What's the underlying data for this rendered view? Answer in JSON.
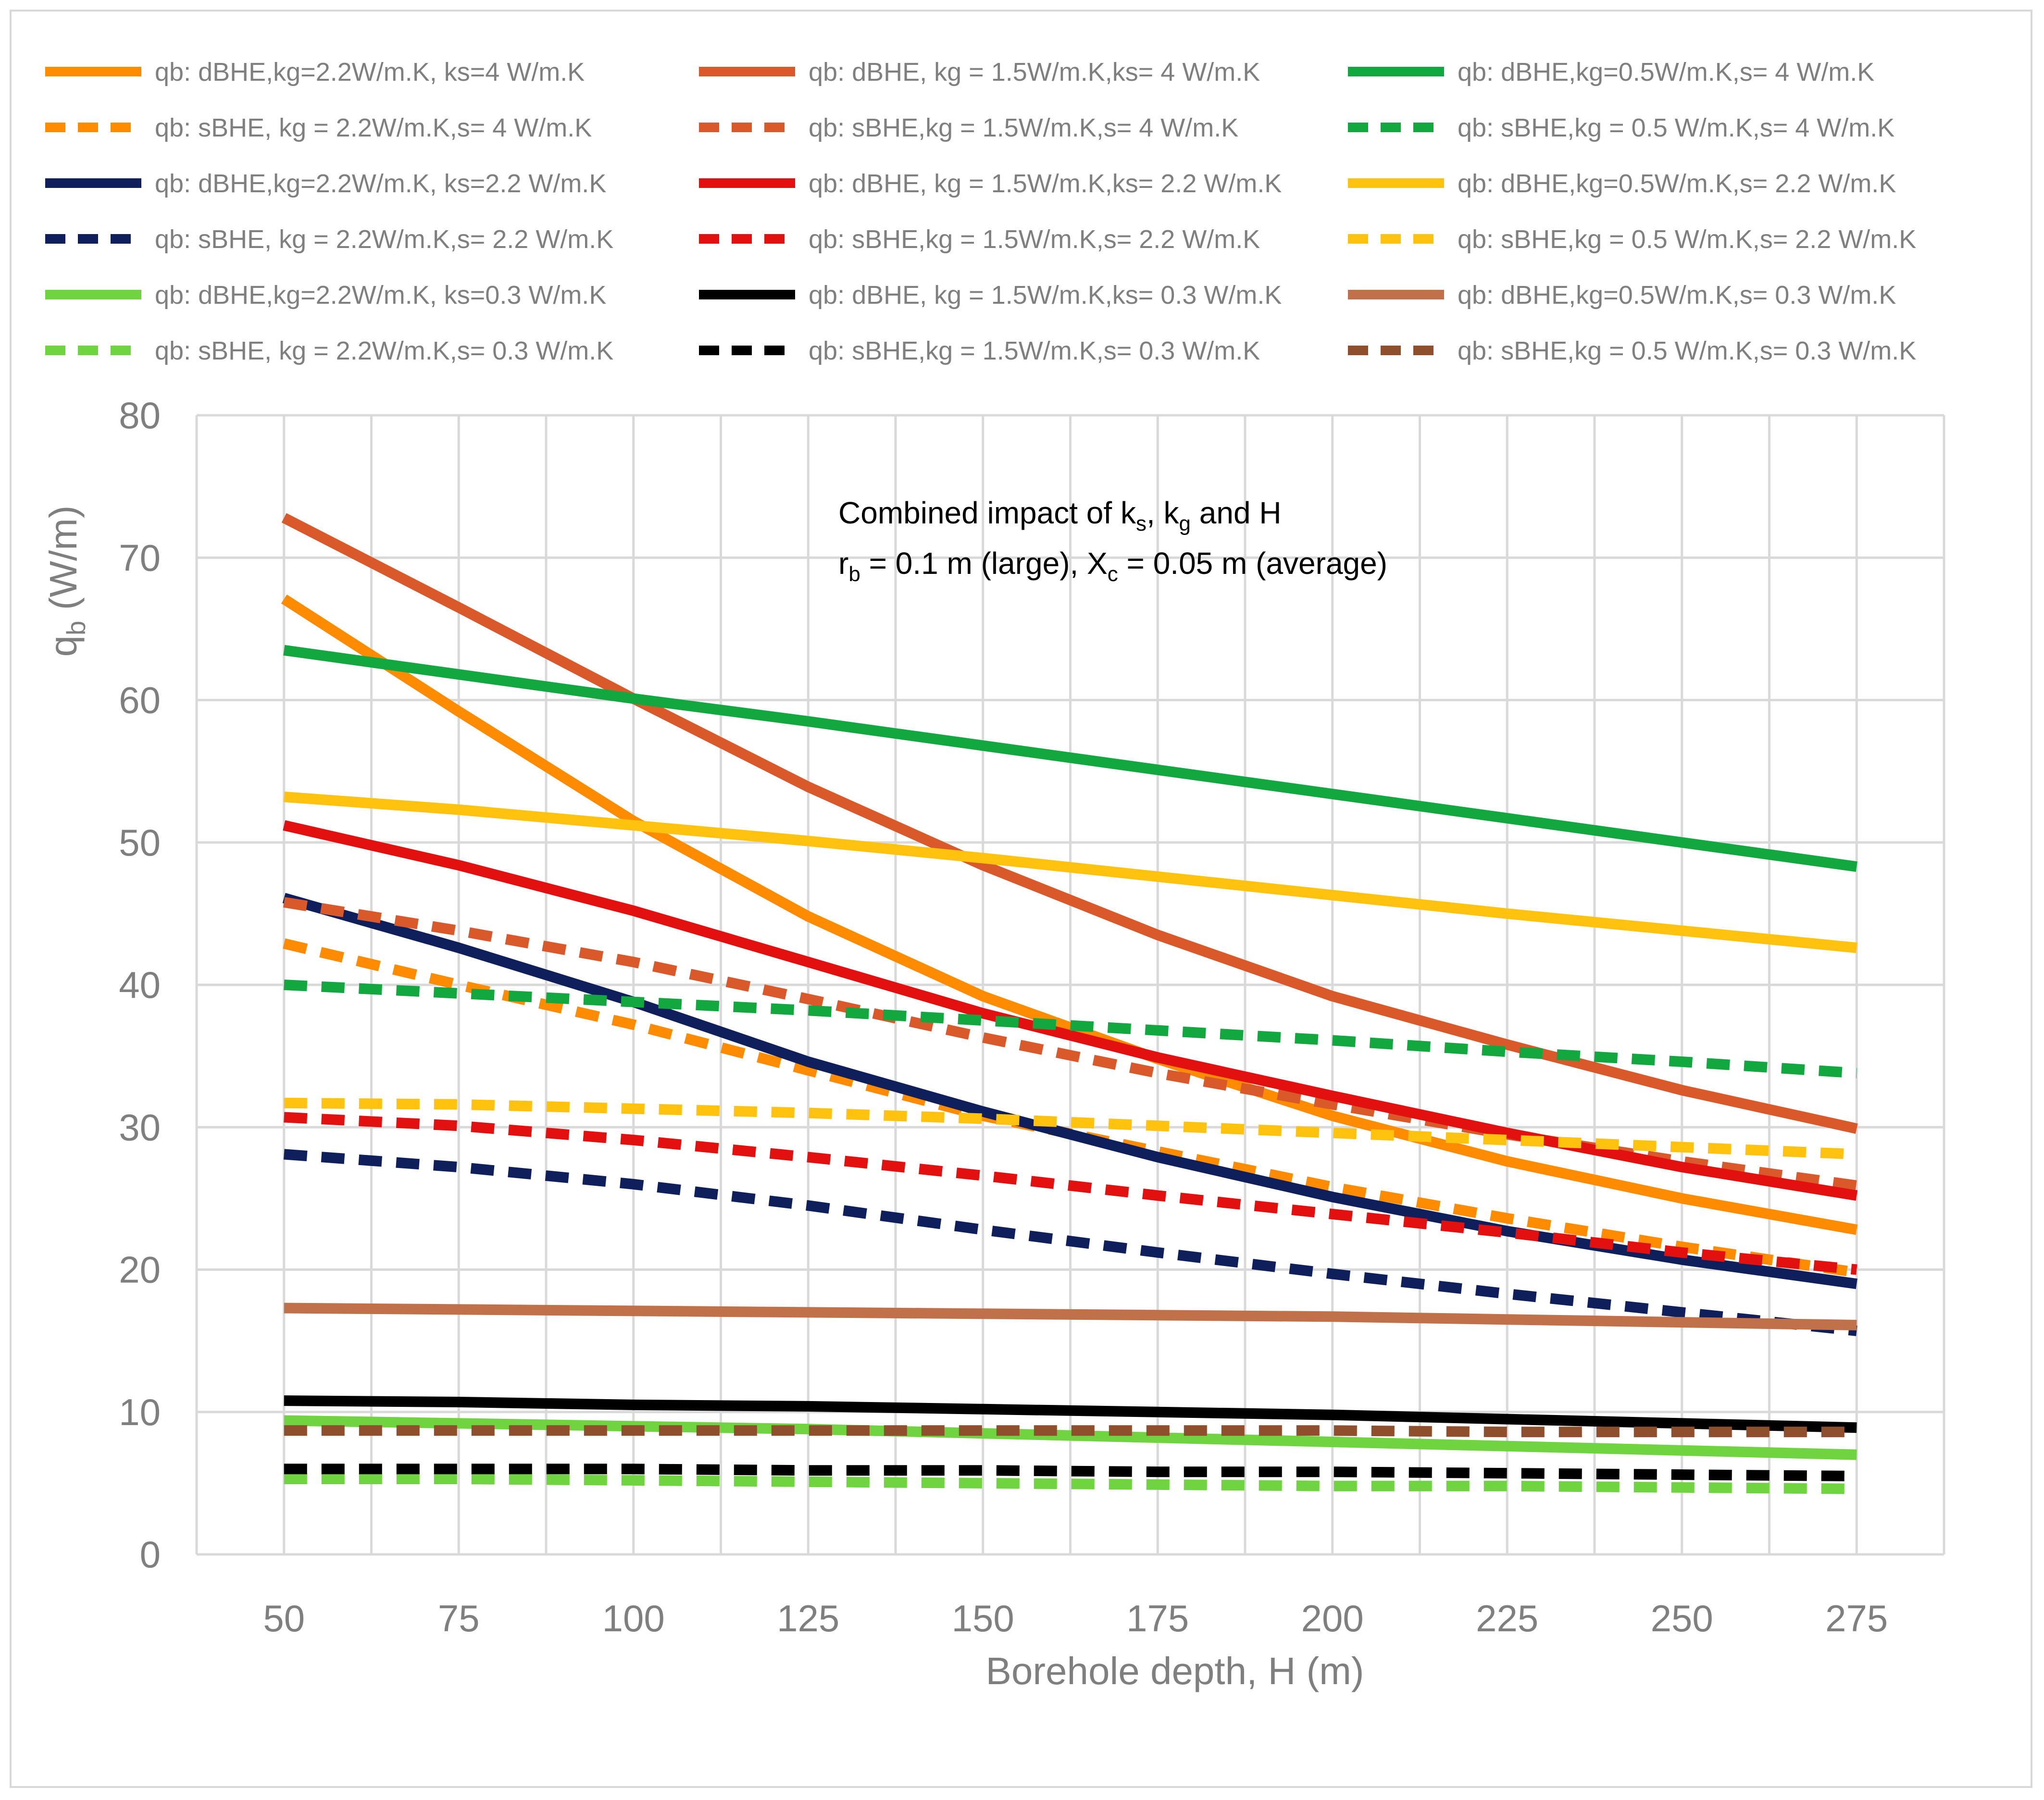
{
  "chart_data": {
    "type": "line",
    "xlabel": "Borehole depth, H (m)",
    "ylabel_main": "q",
    "ylabel_sub": "b",
    "ylabel_unit": " (W/m)",
    "x": [
      50,
      75,
      100,
      125,
      150,
      175,
      200,
      225,
      250,
      275
    ],
    "x_tick_labels": [
      "50",
      "75",
      "100",
      "125",
      "150",
      "175",
      "200",
      "225",
      "250",
      "275"
    ],
    "xlim": [
      37.5,
      287.5
    ],
    "ylim": [
      0,
      80
    ],
    "y_tick_labels": [
      "0",
      "10",
      "20",
      "30",
      "40",
      "50",
      "60",
      "70",
      "80"
    ],
    "grid": true,
    "legend_position": "top",
    "annotation": {
      "line1_a": "Combined impact of k",
      "line1_sub_s": "s",
      "line1_b": ", k",
      "line1_sub_g": "g",
      "line1_c": " and H",
      "line2_a": "r",
      "line2_sub_b": "b",
      "line2_b": " = 0.1 m (large), X",
      "line2_sub_c": "c",
      "line2_c": " = 0.05 m (average)"
    },
    "series": [
      {
        "name": "qb: dBHE,kg=2.2W/m.K, ks=4 W/m.K",
        "color": "#ff8c00",
        "dash": "solid",
        "values": [
          67.1,
          59.2,
          51.5,
          44.8,
          39.2,
          34.8,
          30.8,
          27.6,
          25.0,
          22.8
        ]
      },
      {
        "name": "qb: sBHE, kg = 2.2W/m.K,s= 4 W/m.K",
        "color": "#ff8c00",
        "dash": "dashed",
        "values": [
          42.9,
          40.0,
          37.2,
          34.0,
          30.8,
          28.3,
          25.8,
          23.6,
          21.6,
          19.8
        ]
      },
      {
        "name": "qb: dBHE,kg=2.2W/m.K, ks=2.2 W/m.K",
        "color": "#0f1f5c",
        "dash": "solid",
        "values": [
          46.1,
          42.6,
          38.8,
          34.6,
          31.1,
          27.9,
          25.1,
          22.7,
          20.7,
          19.0
        ]
      },
      {
        "name": "qb: sBHE, kg = 2.2W/m.K,s= 2.2 W/m.K",
        "color": "#0f1f5c",
        "dash": "dashed",
        "values": [
          28.1,
          27.2,
          26.0,
          24.5,
          22.8,
          21.2,
          19.7,
          18.3,
          17.0,
          15.7
        ]
      },
      {
        "name": "qb: dBHE,kg=2.2W/m.K, ks=0.3 W/m.K",
        "color": "#6fd43f",
        "dash": "solid",
        "values": [
          9.4,
          9.2,
          9.0,
          8.8,
          8.5,
          8.2,
          7.9,
          7.6,
          7.3,
          7.0
        ]
      },
      {
        "name": "qb: sBHE, kg = 2.2W/m.K,s= 0.3 W/m.K",
        "color": "#6fd43f",
        "dash": "dashed",
        "values": [
          5.3,
          5.3,
          5.2,
          5.1,
          5.0,
          4.9,
          4.8,
          4.8,
          4.7,
          4.6
        ]
      },
      {
        "name": "qb: dBHE, kg = 1.5W/m.K,ks= 4 W/m.K",
        "color": "#d9592b",
        "dash": "solid",
        "values": [
          72.8,
          66.5,
          60.1,
          53.9,
          48.4,
          43.5,
          39.2,
          35.8,
          32.6,
          29.9
        ]
      },
      {
        "name": "qb: sBHE,kg = 1.5W/m.K,s= 4 W/m.K",
        "color": "#d9592b",
        "dash": "dashed",
        "values": [
          45.8,
          43.8,
          41.6,
          39.0,
          36.3,
          33.8,
          31.6,
          29.5,
          27.6,
          25.9
        ]
      },
      {
        "name": "qb: dBHE, kg = 1.5W/m.K,ks= 2.2 W/m.K",
        "color": "#e31010",
        "dash": "solid",
        "values": [
          51.2,
          48.4,
          45.2,
          41.6,
          38.0,
          34.9,
          32.2,
          29.6,
          27.2,
          25.2
        ]
      },
      {
        "name": "qb: sBHE,kg = 1.5W/m.K,s= 2.2 W/m.K",
        "color": "#e31010",
        "dash": "dashed",
        "values": [
          30.7,
          30.1,
          29.1,
          27.9,
          26.6,
          25.2,
          23.9,
          22.6,
          21.2,
          20.0
        ]
      },
      {
        "name": "qb: dBHE, kg = 1.5W/m.K,ks= 0.3 W/m.K",
        "color": "#000000",
        "dash": "solid",
        "values": [
          10.8,
          10.7,
          10.5,
          10.4,
          10.2,
          10.0,
          9.8,
          9.5,
          9.2,
          8.9
        ]
      },
      {
        "name": "qb: sBHE,kg = 1.5W/m.K,s= 0.3 W/m.K",
        "color": "#000000",
        "dash": "dashed",
        "values": [
          6.0,
          6.0,
          6.0,
          5.9,
          5.9,
          5.8,
          5.8,
          5.7,
          5.6,
          5.5
        ]
      },
      {
        "name": "qb: dBHE,kg=0.5W/m.K,s= 4 W/m.K",
        "color": "#12a83f",
        "dash": "solid",
        "values": [
          63.5,
          61.8,
          60.1,
          58.5,
          56.8,
          55.1,
          53.4,
          51.7,
          50.0,
          48.3
        ]
      },
      {
        "name": "qb: sBHE,kg = 0.5 W/m.K,s= 4 W/m.K",
        "color": "#12a83f",
        "dash": "dashed",
        "values": [
          40.0,
          39.4,
          38.8,
          38.2,
          37.5,
          36.8,
          36.1,
          35.3,
          34.6,
          33.8
        ]
      },
      {
        "name": "qb: dBHE,kg=0.5W/m.K,s= 2.2 W/m.K",
        "color": "#ffc20e",
        "dash": "solid",
        "values": [
          53.2,
          52.3,
          51.2,
          50.1,
          48.9,
          47.6,
          46.3,
          45.0,
          43.8,
          42.6
        ]
      },
      {
        "name": "qb: sBHE,kg = 0.5 W/m.K,s= 2.2 W/m.K",
        "color": "#ffc20e",
        "dash": "dashed",
        "values": [
          31.7,
          31.6,
          31.3,
          31.0,
          30.6,
          30.1,
          29.6,
          29.1,
          28.6,
          28.1
        ]
      },
      {
        "name": "qb: dBHE,kg=0.5W/m.K,s= 0.3 W/m.K",
        "color": "#c0714a",
        "dash": "solid",
        "values": [
          17.3,
          17.2,
          17.1,
          17.0,
          16.9,
          16.8,
          16.7,
          16.5,
          16.3,
          16.1
        ]
      },
      {
        "name": "qb: sBHE,kg = 0.5 W/m.K,s= 0.3 W/m.K",
        "color": "#8f4f2c",
        "dash": "dashed",
        "values": [
          8.7,
          8.7,
          8.7,
          8.7,
          8.7,
          8.7,
          8.7,
          8.6,
          8.6,
          8.6
        ]
      }
    ]
  }
}
